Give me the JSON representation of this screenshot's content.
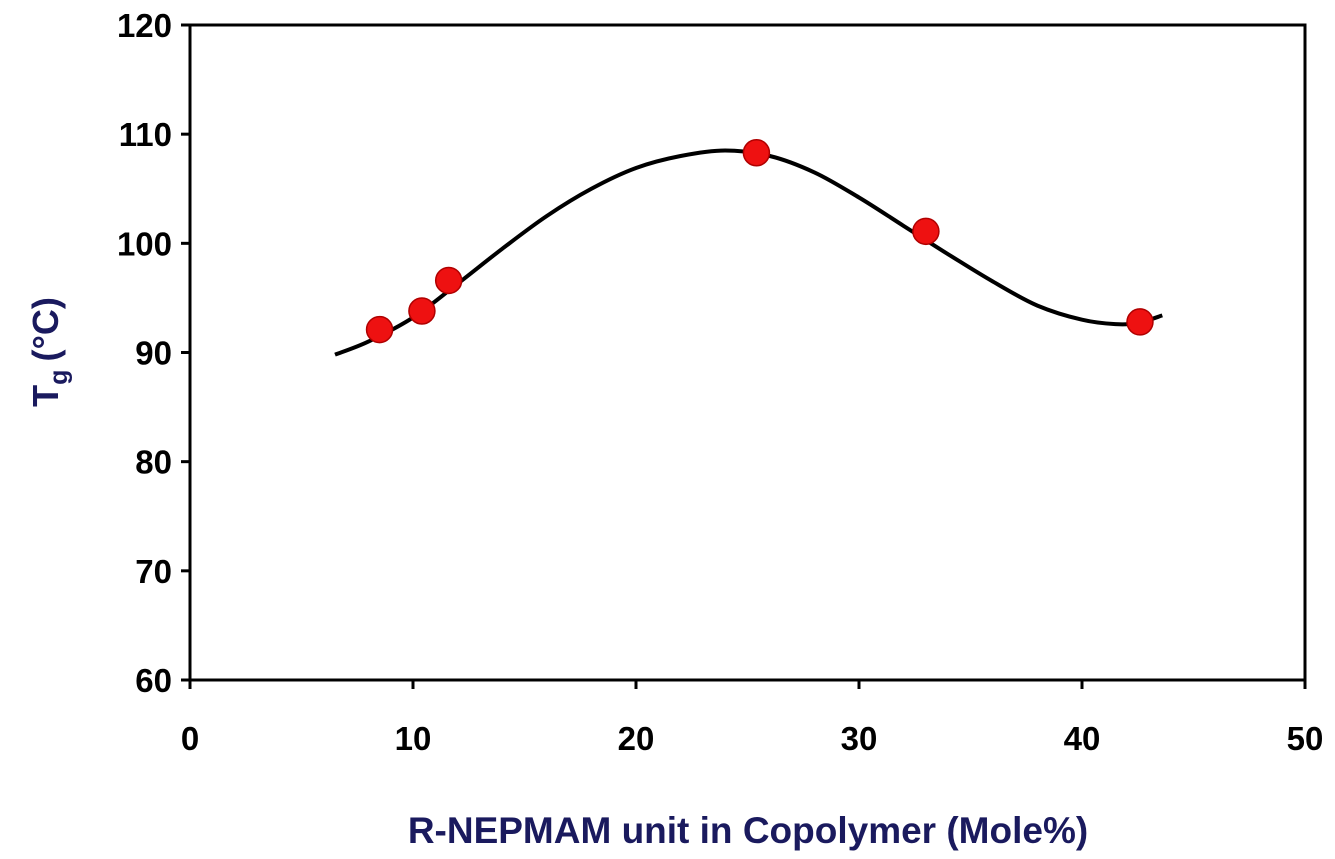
{
  "chart_data": {
    "type": "scatter",
    "title": "",
    "xlabel": "R-NEPMAM unit in Copolymer (Mole%)",
    "ylabel_main": "T",
    "ylabel_sub": "g",
    "ylabel_unit": "(°C)",
    "xlim": [
      0,
      50
    ],
    "ylim": [
      60,
      120
    ],
    "x_ticks": [
      "0",
      "10",
      "20",
      "30",
      "40",
      "50"
    ],
    "y_ticks": [
      "60",
      "70",
      "80",
      "90",
      "100",
      "110",
      "120"
    ],
    "grid": false,
    "legend": "none",
    "series": [
      {
        "points": [
          {
            "x": 8.5,
            "y": 92.1
          },
          {
            "x": 10.4,
            "y": 93.8
          },
          {
            "x": 11.6,
            "y": 96.6
          },
          {
            "x": 25.4,
            "y": 108.3
          },
          {
            "x": 33.0,
            "y": 101.1
          },
          {
            "x": 42.6,
            "y": 92.8
          }
        ],
        "color": "#ee1111"
      }
    ],
    "fit_curve": {
      "color": "#000000",
      "points": [
        {
          "x": 6.5,
          "y": 89.8
        },
        {
          "x": 8.0,
          "y": 91.0
        },
        {
          "x": 10.0,
          "y": 93.2
        },
        {
          "x": 12.0,
          "y": 96.3
        },
        {
          "x": 14.0,
          "y": 99.5
        },
        {
          "x": 16.0,
          "y": 102.5
        },
        {
          "x": 18.0,
          "y": 105.0
        },
        {
          "x": 20.0,
          "y": 106.9
        },
        {
          "x": 22.0,
          "y": 108.0
        },
        {
          "x": 24.0,
          "y": 108.5
        },
        {
          "x": 26.0,
          "y": 108.0
        },
        {
          "x": 28.0,
          "y": 106.5
        },
        {
          "x": 30.0,
          "y": 104.2
        },
        {
          "x": 32.0,
          "y": 101.6
        },
        {
          "x": 34.0,
          "y": 99.0
        },
        {
          "x": 36.0,
          "y": 96.5
        },
        {
          "x": 38.0,
          "y": 94.3
        },
        {
          "x": 40.0,
          "y": 93.0
        },
        {
          "x": 41.5,
          "y": 92.6
        },
        {
          "x": 42.5,
          "y": 92.7
        },
        {
          "x": 43.6,
          "y": 93.4
        }
      ]
    }
  }
}
